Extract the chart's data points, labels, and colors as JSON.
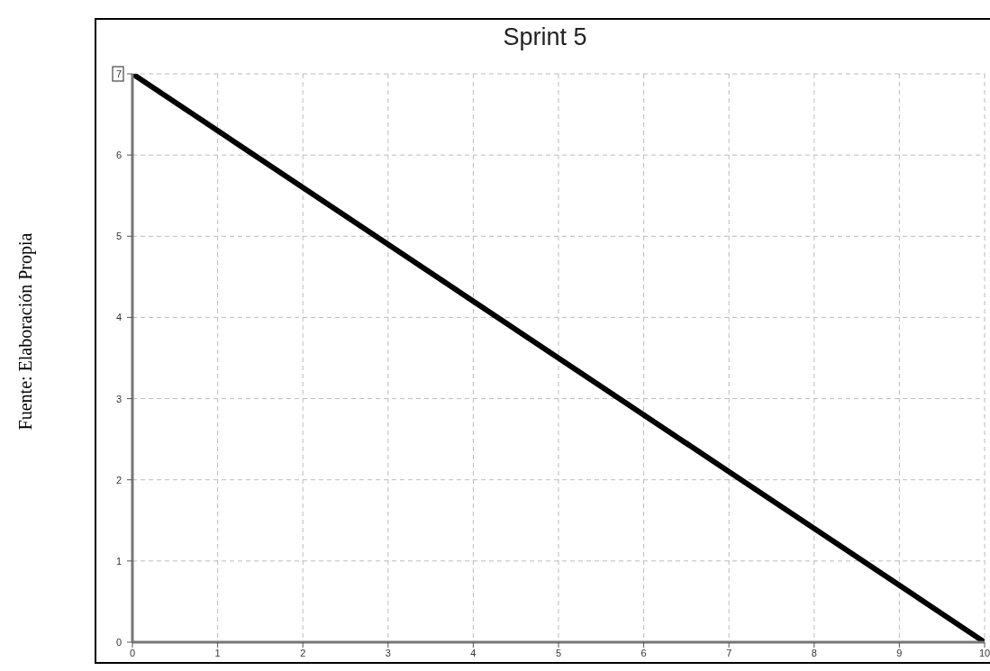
{
  "chart_data": {
    "type": "line",
    "title": "Sprint 5",
    "x": [
      0,
      10
    ],
    "series": [
      {
        "color": "#000000",
        "values": [
          7,
          0
        ]
      }
    ],
    "xlim": [
      0,
      10
    ],
    "xticks": [
      0,
      1,
      2,
      3,
      4,
      5,
      6,
      7,
      8,
      9,
      10
    ],
    "ylim": [
      0,
      7
    ],
    "yticks": [
      0,
      1,
      2,
      3,
      4,
      5,
      6,
      7
    ],
    "grid": true,
    "marker": "none",
    "line_style": "solid",
    "annotations": [
      "Fuente: Elaboración Propia"
    ]
  }
}
